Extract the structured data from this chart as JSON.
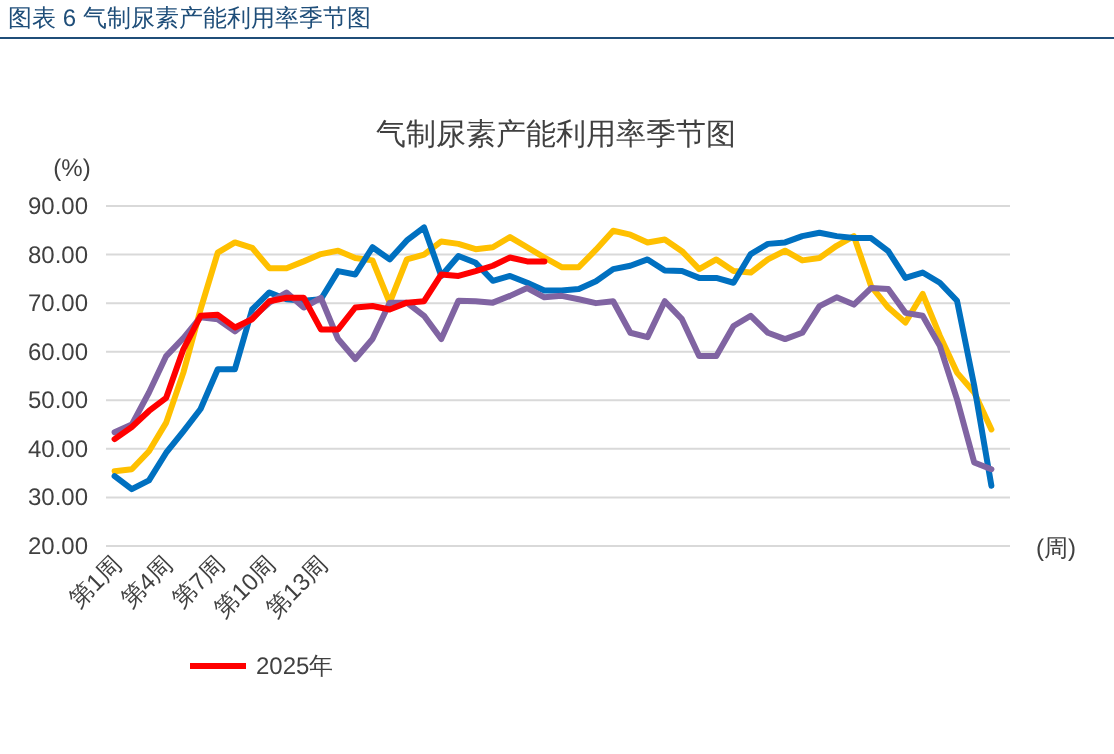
{
  "chart_data": {
    "type": "line",
    "title": "图表 6  气制尿素产能利用率季节图",
    "subtitle": "气制尿素产能利用率季节图",
    "ylabel": "(%)",
    "xlabel": "(周)",
    "categories": [
      "第1周",
      null,
      null,
      "第4周",
      null,
      null,
      "第7周",
      null,
      null,
      "第10周",
      null,
      null,
      "第13周",
      null,
      null,
      null,
      null,
      null,
      null,
      null,
      null,
      null,
      null,
      null,
      null,
      null,
      null,
      null,
      null,
      null,
      null,
      null,
      null,
      null,
      null,
      null,
      null,
      null,
      null,
      null,
      null,
      null,
      null,
      null,
      null,
      null,
      null,
      null,
      null,
      null,
      null,
      null
    ],
    "ylim": [
      20,
      90
    ],
    "yticks": [
      {
        "value": 20,
        "label": "20.00"
      },
      {
        "value": 30,
        "label": "30.00"
      },
      {
        "value": 40,
        "label": "40.00"
      },
      {
        "value": 50,
        "label": "50.00"
      },
      {
        "value": 60,
        "label": "60.00"
      },
      {
        "value": 70,
        "label": "70.00"
      },
      {
        "value": 80,
        "label": "80.00"
      },
      {
        "value": 90,
        "label": "90.00"
      }
    ],
    "grid": "y",
    "legend": "bottom",
    "marker": "none",
    "line_style": "solid",
    "series": [
      {
        "color": "#ffc000",
        "values": [
          35.4,
          35.8,
          39.5,
          45.4,
          55.7,
          68.7,
          80.4,
          82.5,
          81.4,
          77.2,
          77.2,
          78.6,
          80.1,
          80.8,
          79.3,
          78.8,
          70.1,
          79,
          80,
          82.7,
          82.2,
          81.1,
          81.5,
          83.6,
          81.5,
          79.4,
          77.4,
          77.4,
          81,
          84.9,
          84.1,
          82.5,
          83.1,
          80.7,
          77,
          79,
          76.6,
          76.3,
          79,
          80.8,
          78.8,
          79.3,
          81.8,
          83.8,
          73.5,
          69.1,
          66,
          71.9,
          63.3,
          55.7,
          51.6,
          44
        ]
      },
      {
        "color": "#0070c0",
        "values": [
          34.4,
          31.7,
          33.5,
          39.2,
          43.6,
          48.2,
          56.4,
          56.4,
          68.7,
          72.2,
          70.8,
          70.5,
          70.8,
          76.6,
          75.9,
          81.5,
          79,
          82.9,
          85.6,
          75.6,
          79.7,
          78.3,
          74.6,
          75.6,
          74.2,
          72.6,
          72.6,
          72.9,
          74.5,
          77,
          77.7,
          79,
          76.7,
          76.6,
          75.2,
          75.2,
          74.2,
          80.1,
          82.2,
          82.5,
          83.8,
          84.5,
          83.8,
          83.4,
          83.4,
          80.7,
          75.2,
          76.3,
          74.2,
          70.5,
          53,
          32.4
        ]
      },
      {
        "color": "#8064a2",
        "values": [
          43.4,
          45,
          51.6,
          59.1,
          62.8,
          67.1,
          66.7,
          64.2,
          67,
          70.1,
          72.2,
          69.1,
          71.1,
          62.6,
          58.5,
          62.6,
          70.1,
          70.1,
          67.4,
          62.6,
          70.5,
          70.4,
          70.1,
          71.5,
          73.1,
          71.2,
          71.5,
          70.8,
          70,
          70.4,
          63.9,
          63,
          70.4,
          66.7,
          59.1,
          59.1,
          65.3,
          67.4,
          63.9,
          62.6,
          63.9,
          69.4,
          71.2,
          69.7,
          73.1,
          72.9,
          68,
          67.4,
          61.2,
          50.2,
          37.2,
          35.8
        ]
      },
      {
        "name": "2025年",
        "color": "#ff0000",
        "values": [
          42,
          44.5,
          47.8,
          50.5,
          60.5,
          67.4,
          67.6,
          65,
          66.7,
          70.4,
          71.1,
          71.1,
          64.6,
          64.6,
          69.1,
          69.4,
          68.7,
          70.1,
          70.4,
          75.9,
          75.6,
          76.6,
          77.7,
          79.4,
          78.6,
          78.6,
          null,
          null,
          null,
          null,
          null,
          null,
          null,
          null,
          null,
          null,
          null,
          null,
          null,
          null,
          null,
          null,
          null,
          null,
          null,
          null,
          null,
          null,
          null,
          null,
          null,
          null
        ]
      }
    ]
  }
}
